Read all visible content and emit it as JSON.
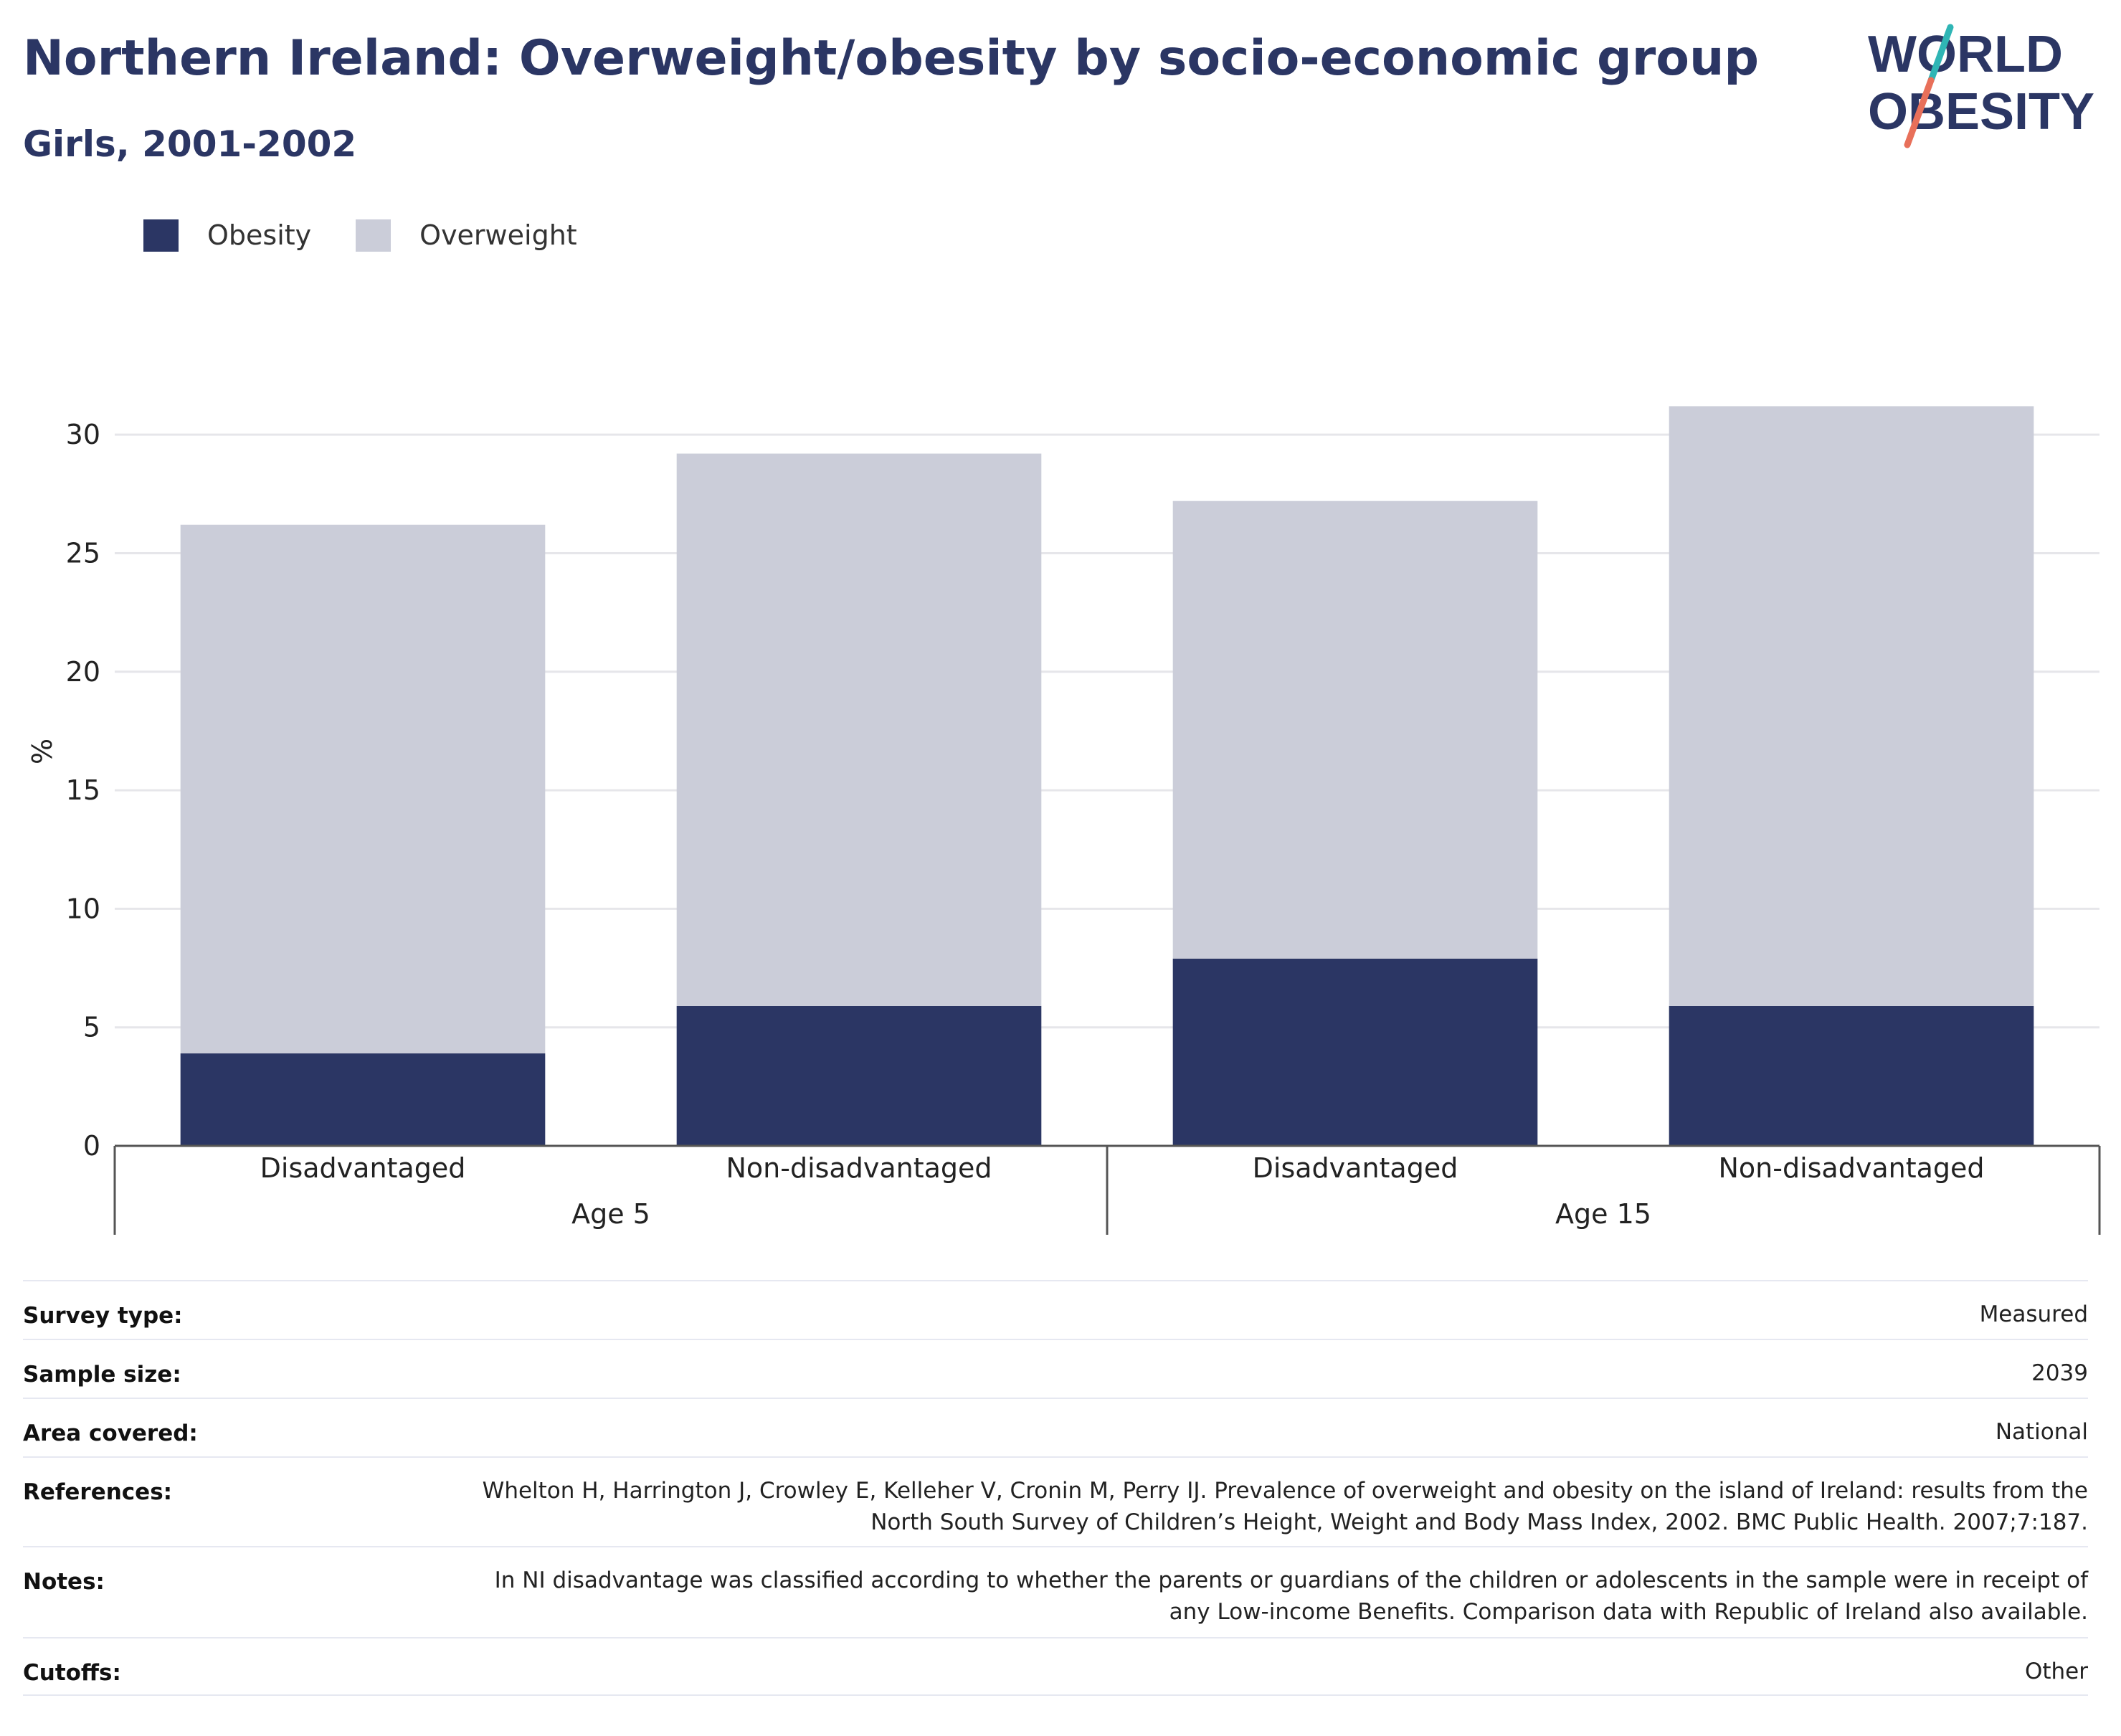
{
  "title": "Northern Ireland: Overweight/obesity by socio-economic group",
  "subtitle": "Girls, 2001-2002",
  "logo": {
    "line1": "WORLD",
    "line2": "OBESITY"
  },
  "legend": [
    {
      "label": "Obesity",
      "color": "#2b3664"
    },
    {
      "label": "Overweight",
      "color": "#cbcdd9"
    }
  ],
  "chart_data": {
    "type": "bar",
    "stacked": true,
    "ylabel": "%",
    "ylim": [
      0,
      32
    ],
    "yticks": [
      0,
      5,
      10,
      15,
      20,
      25,
      30
    ],
    "grid": true,
    "legend_position": "top-left",
    "groups": [
      {
        "label": "Age 5",
        "categories": [
          "Disadvantaged",
          "Non-disadvantaged"
        ]
      },
      {
        "label": "Age 15",
        "categories": [
          "Disadvantaged",
          "Non-disadvantaged"
        ]
      }
    ],
    "categories": [
      "Disadvantaged",
      "Non-disadvantaged",
      "Disadvantaged",
      "Non-disadvantaged"
    ],
    "series": [
      {
        "name": "Obesity",
        "color": "#2b3664",
        "values": [
          3.9,
          5.9,
          7.9,
          5.9
        ]
      },
      {
        "name": "Overweight",
        "color": "#cbcdd9",
        "values": [
          22.3,
          23.3,
          19.3,
          25.3
        ]
      }
    ],
    "totals": [
      26.2,
      29.2,
      27.2,
      31.2
    ]
  },
  "details": [
    {
      "label": "Survey type:",
      "value": "Measured"
    },
    {
      "label": "Sample size:",
      "value": "2039"
    },
    {
      "label": "Area covered:",
      "value": "National"
    },
    {
      "label": "References:",
      "value": "Whelton H, Harrington J, Crowley E, Kelleher V, Cronin M, Perry IJ. Prevalence of overweight and obesity on the island of Ireland: results from the North South Survey of Children’s Height, Weight and Body Mass Index, 2002. BMC Public Health. 2007;7:187."
    },
    {
      "label": "Notes:",
      "value": "In NI disadvantage was classified according to whether the parents or guardians of the children or adolescents in the sample were in receipt of any Low-income Benefits. Comparison data with Republic of Ireland also available."
    },
    {
      "label": "Cutoffs:",
      "value": "Other"
    }
  ]
}
